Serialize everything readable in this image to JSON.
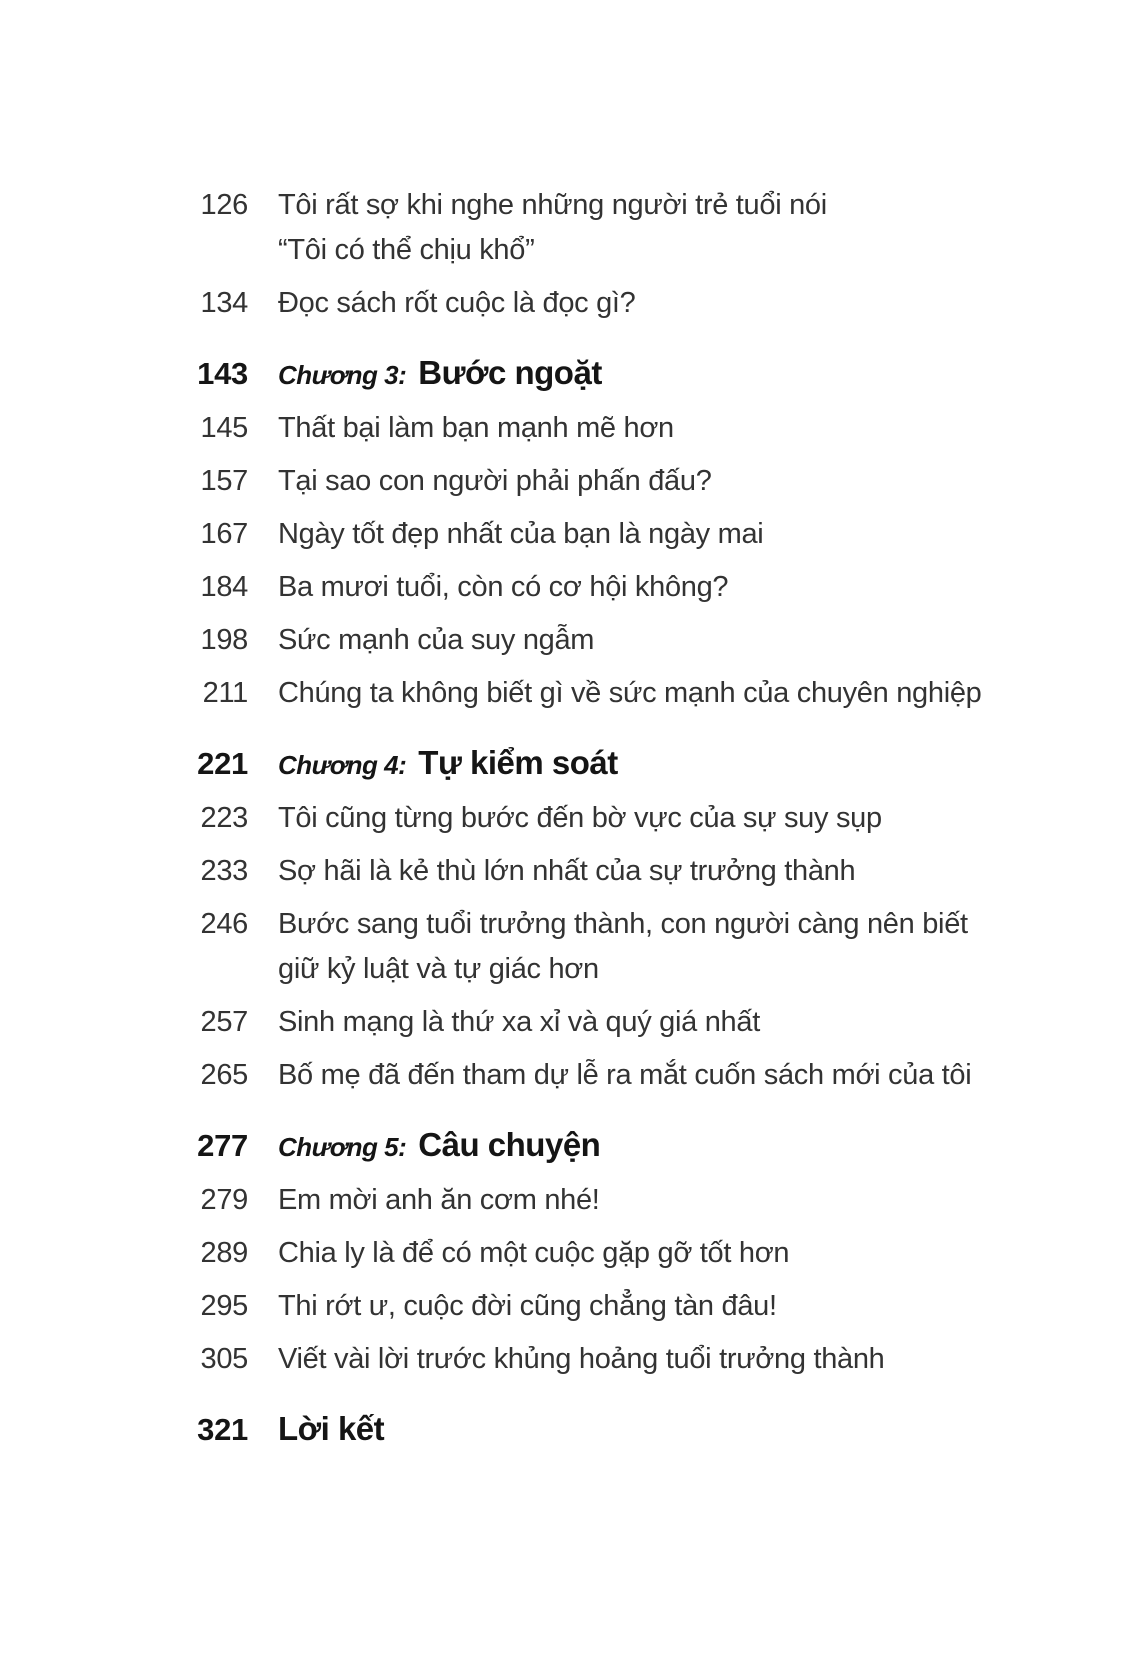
{
  "page": {
    "background_color": "#ffffff",
    "text_color": "#333333",
    "heading_color": "#151515"
  },
  "toc": {
    "entries": [
      {
        "type": "item",
        "page": "126",
        "lines": [
          "Tôi rất sợ khi nghe những người trẻ tuổi nói",
          "“Tôi có thể chịu khổ”"
        ]
      },
      {
        "type": "item",
        "page": "134",
        "lines": [
          "Đọc sách rốt cuộc là đọc gì?"
        ]
      },
      {
        "type": "chapter",
        "page": "143",
        "chapter_label": "Chương 3:",
        "title": "Bước ngoặt"
      },
      {
        "type": "item",
        "page": "145",
        "lines": [
          "Thất bại làm bạn mạnh mẽ hơn"
        ]
      },
      {
        "type": "item",
        "page": "157",
        "lines": [
          "Tại sao con người phải phấn đấu?"
        ]
      },
      {
        "type": "item",
        "page": "167",
        "lines": [
          "Ngày tốt đẹp nhất của bạn là ngày mai"
        ]
      },
      {
        "type": "item",
        "page": "184",
        "lines": [
          "Ba mươi tuổi, còn có cơ hội không?"
        ]
      },
      {
        "type": "item",
        "page": "198",
        "lines": [
          "Sức mạnh của suy ngẫm"
        ]
      },
      {
        "type": "item",
        "page": "211",
        "lines": [
          "Chúng ta không biết gì về sức mạnh của chuyên nghiệp"
        ]
      },
      {
        "type": "chapter",
        "page": "221",
        "chapter_label": "Chương 4:",
        "title": "Tự kiểm soát"
      },
      {
        "type": "item",
        "page": "223",
        "lines": [
          "Tôi cũng từng bước đến bờ vực của sự suy sụp"
        ]
      },
      {
        "type": "item",
        "page": "233",
        "lines": [
          "Sợ hãi là kẻ thù lớn nhất của sự trưởng thành"
        ]
      },
      {
        "type": "item",
        "page": "246",
        "lines": [
          "Bước sang tuổi trưởng thành, con người càng nên biết",
          "giữ kỷ luật và tự giác hơn"
        ]
      },
      {
        "type": "item",
        "page": "257",
        "lines": [
          "Sinh mạng là thứ xa xỉ và quý giá nhất"
        ]
      },
      {
        "type": "item",
        "page": "265",
        "lines": [
          "Bố mẹ đã đến tham dự lễ ra mắt cuốn sách mới của tôi"
        ]
      },
      {
        "type": "chapter",
        "page": "277",
        "chapter_label": "Chương 5:",
        "title": "Câu chuyện"
      },
      {
        "type": "item",
        "page": "279",
        "lines": [
          "Em mời anh ăn cơm nhé!"
        ]
      },
      {
        "type": "item",
        "page": "289",
        "lines": [
          "Chia ly là để có một cuộc gặp gỡ tốt hơn"
        ]
      },
      {
        "type": "item",
        "page": "295",
        "lines": [
          "Thi rớt ư, cuộc đời cũng chẳng tàn đâu!"
        ]
      },
      {
        "type": "item",
        "page": "305",
        "lines": [
          "Viết vài lời trước khủng hoảng tuổi trưởng thành"
        ]
      },
      {
        "type": "chapter",
        "page": "321",
        "chapter_label": "",
        "title": "Lời kết"
      }
    ]
  }
}
